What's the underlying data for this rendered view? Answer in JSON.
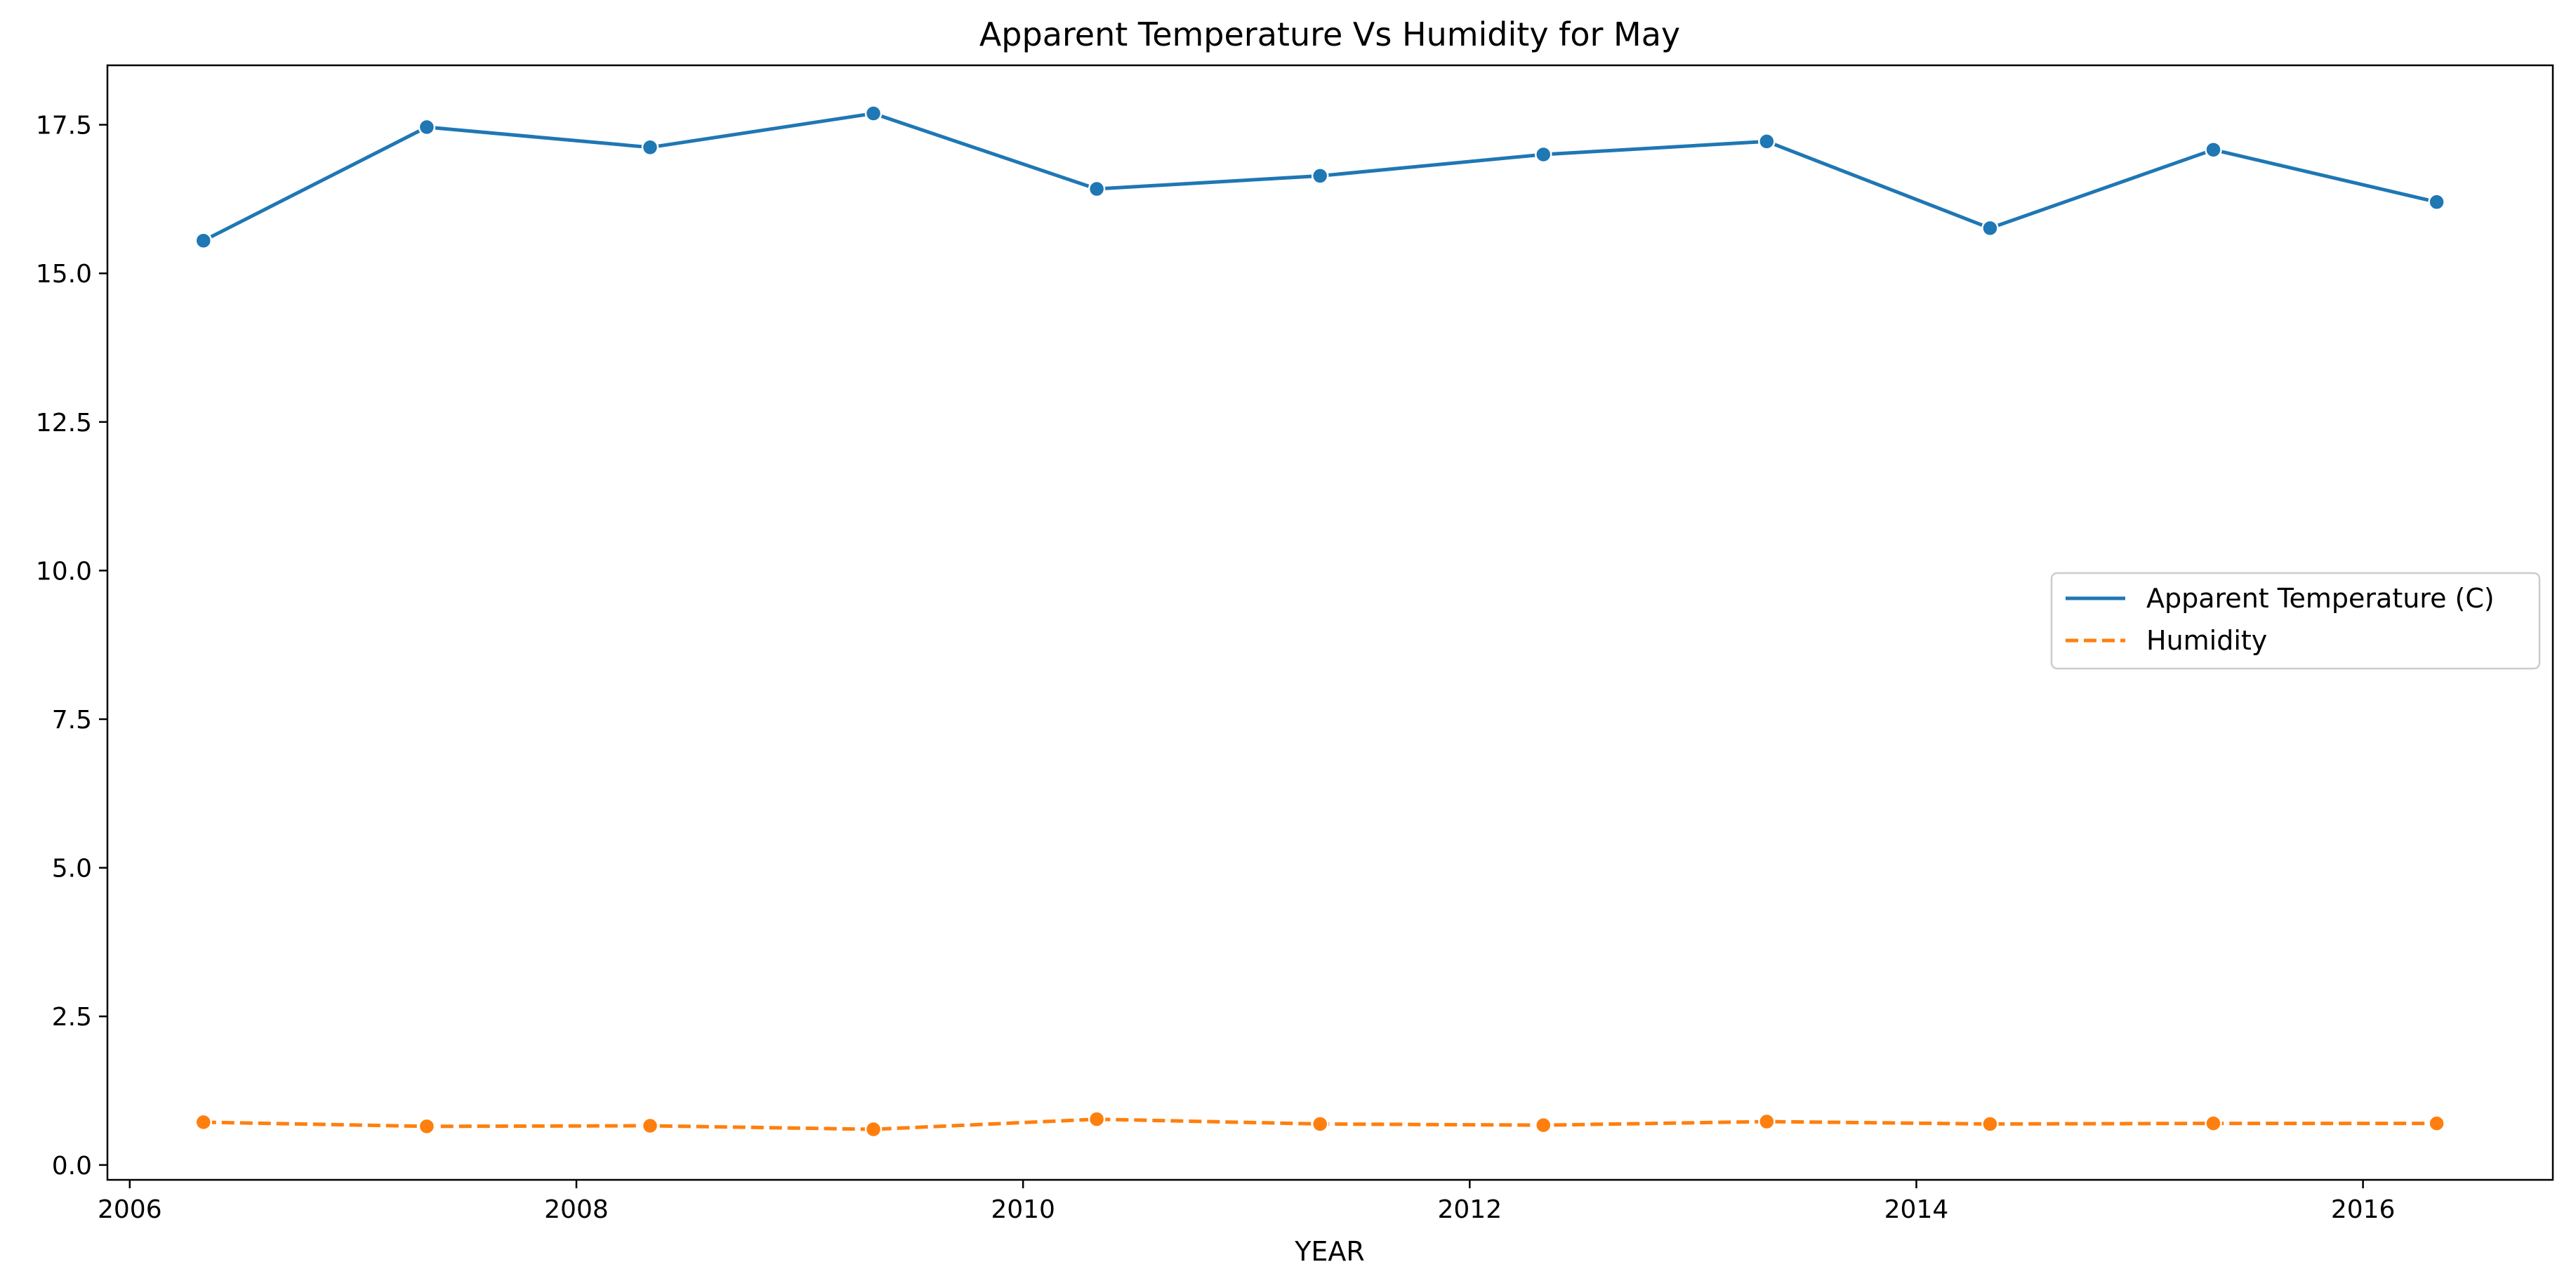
{
  "chart_data": {
    "type": "line",
    "title": "Apparent Temperature Vs Humidity for May",
    "xlabel": "YEAR",
    "ylabel": "",
    "xlim": [
      2005.9,
      2016.85
    ],
    "ylim": [
      -0.25,
      18.5
    ],
    "x": [
      2006.33,
      2007.33,
      2008.33,
      2009.33,
      2010.33,
      2011.33,
      2012.33,
      2013.33,
      2014.33,
      2015.33,
      2016.33
    ],
    "x_ticks": [
      2006,
      2008,
      2010,
      2012,
      2014,
      2016
    ],
    "x_tick_labels": [
      "2006",
      "2008",
      "2010",
      "2012",
      "2014",
      "2016"
    ],
    "y_ticks": [
      0,
      2.5,
      5,
      7.5,
      10,
      12.5,
      15,
      17.5
    ],
    "y_tick_labels": [
      "0.0",
      "2.5",
      "5.0",
      "7.5",
      "10.0",
      "12.5",
      "15.0",
      "17.5"
    ],
    "grid": false,
    "legend_position": "center-right",
    "series": [
      {
        "name": "Apparent Temperature (C)",
        "color": "#1f77b4",
        "dash": "solid",
        "values": [
          15.55,
          17.46,
          17.12,
          17.69,
          16.42,
          16.64,
          17.0,
          17.22,
          15.76,
          17.08,
          16.2
        ]
      },
      {
        "name": "Humidity",
        "color": "#ff7f0e",
        "dash": "dashed",
        "values": [
          0.72,
          0.65,
          0.66,
          0.6,
          0.77,
          0.69,
          0.67,
          0.73,
          0.69,
          0.7,
          0.7
        ]
      }
    ]
  }
}
